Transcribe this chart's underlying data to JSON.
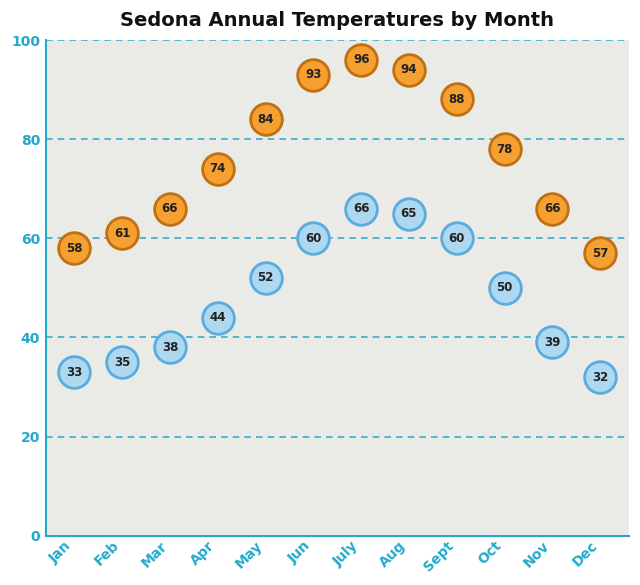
{
  "title": "Sedona Annual Temperatures by Month",
  "months": [
    "Jan",
    "Feb",
    "Mar",
    "Apr",
    "May",
    "Jun",
    "July",
    "Aug",
    "Sept",
    "Oct",
    "Nov",
    "Dec"
  ],
  "high_temps": [
    58,
    61,
    66,
    74,
    84,
    93,
    96,
    94,
    88,
    78,
    66,
    57
  ],
  "low_temps": [
    33,
    35,
    38,
    44,
    52,
    60,
    66,
    65,
    60,
    50,
    39,
    32
  ],
  "high_color": "#F5A030",
  "high_edge_color": "#C07010",
  "low_color": "#ADD8F0",
  "low_edge_color": "#5AABE0",
  "text_color": "#222222",
  "title_color": "#111111",
  "bg_color": "#EAEAE6",
  "outer_bg": "#FFFFFF",
  "axis_color": "#22AACC",
  "grid_color": "#22AACC",
  "ylim": [
    0,
    100
  ],
  "yticks": [
    0,
    20,
    40,
    60,
    80,
    100
  ],
  "marker_size": 520,
  "font_size_labels": 8.5,
  "font_size_title": 14,
  "font_size_ticks": 10
}
